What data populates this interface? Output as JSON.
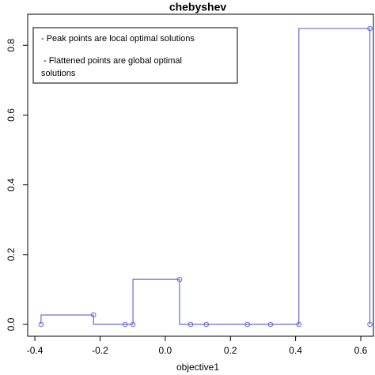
{
  "chart_data": {
    "type": "step",
    "title": "chebyshev",
    "x_label": "objective1",
    "annotation": [
      "- Peak points are local optimal solutions",
      " - Flattened points are global optimal",
      "solutions"
    ],
    "x": [
      -0.381,
      -0.22,
      -0.123,
      -0.099,
      0.044,
      0.078,
      0.126,
      0.252,
      0.323,
      0.41,
      0.628,
      0.628
    ],
    "series": [
      {
        "color": "#6a6ad8",
        "values": [
          0,
          0.027,
          0,
          0,
          0.129,
          0,
          0,
          0,
          0,
          0,
          0.848,
          0
        ]
      }
    ],
    "xlim": [
      -0.422,
      0.64
    ],
    "ylim": [
      -0.034,
      0.889
    ],
    "xticks": [
      -0.4,
      -0.2,
      {
        "value": 0,
        "label": "0.0"
      },
      0.2,
      0.4,
      0.6
    ],
    "yticks": [
      {
        "value": 0,
        "label": "0.0"
      },
      0.2,
      0.4,
      0.6,
      0.8
    ]
  }
}
